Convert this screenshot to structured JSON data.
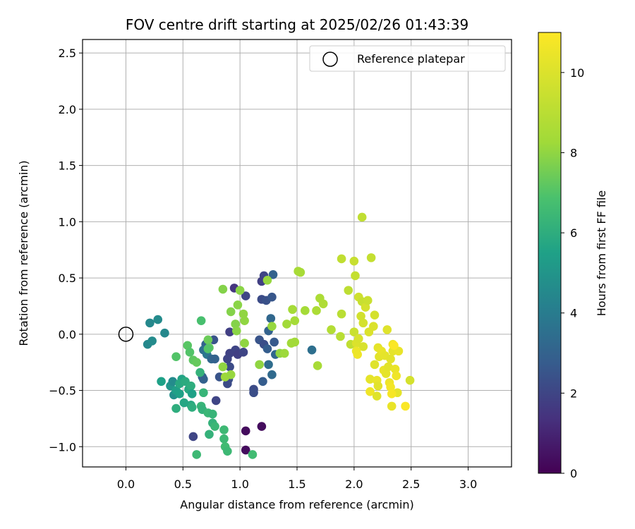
{
  "chart_data": {
    "type": "scatter",
    "title": "FOV centre drift starting at 2025/02/26 01:43:39",
    "xlabel": "Angular distance from reference (arcmin)",
    "ylabel": "Rotation from reference (arcmin)",
    "xlim": [
      -0.38,
      3.38
    ],
    "ylim": [
      -1.18,
      2.62
    ],
    "xticks": [
      "0.0",
      "0.5",
      "1.0",
      "1.5",
      "2.0",
      "2.5",
      "3.0"
    ],
    "xtick_values": [
      0,
      0.5,
      1,
      1.5,
      2,
      2.5,
      3
    ],
    "yticks": [
      "−1.0",
      "−0.5",
      "0.0",
      "0.5",
      "1.0",
      "1.5",
      "2.0",
      "2.5"
    ],
    "ytick_values": [
      -1,
      -0.5,
      0,
      0.5,
      1,
      1.5,
      2,
      2.5
    ],
    "grid": true,
    "legend": {
      "position": "top-right",
      "label": "Reference platepar"
    },
    "reference_point": {
      "x": 0,
      "y": 0
    },
    "colorbar": {
      "label": "Hours from first FF file",
      "range": [
        0,
        11
      ],
      "ticks": [
        "0",
        "2",
        "4",
        "6",
        "8",
        "10"
      ],
      "tick_values": [
        0,
        2,
        4,
        6,
        8,
        10
      ],
      "colormap": "viridis"
    },
    "points": [
      {
        "x": 1.05,
        "y": -0.86,
        "h": 0.3
      },
      {
        "x": 1.05,
        "y": -1.03,
        "h": 0.3
      },
      {
        "x": 1.19,
        "y": -0.82,
        "h": 0.3
      },
      {
        "x": 0.95,
        "y": 0.41,
        "h": 1.5
      },
      {
        "x": 1.05,
        "y": 0.34,
        "h": 2.0
      },
      {
        "x": 1.21,
        "y": 0.52,
        "h": 2.0
      },
      {
        "x": 1.19,
        "y": 0.47,
        "h": 1.8
      },
      {
        "x": 1.29,
        "y": 0.53,
        "h": 3.0
      },
      {
        "x": 1.19,
        "y": 0.31,
        "h": 2.2
      },
      {
        "x": 1.23,
        "y": 0.3,
        "h": 2.4
      },
      {
        "x": 1.28,
        "y": 0.33,
        "h": 2.6
      },
      {
        "x": 1.27,
        "y": 0.14,
        "h": 3.2
      },
      {
        "x": 1.25,
        "y": 0.03,
        "h": 3.0
      },
      {
        "x": 1.3,
        "y": -0.07,
        "h": 2.7
      },
      {
        "x": 1.17,
        "y": -0.05,
        "h": 2.5
      },
      {
        "x": 1.21,
        "y": -0.09,
        "h": 2.3
      },
      {
        "x": 1.24,
        "y": -0.13,
        "h": 2.8
      },
      {
        "x": 1.31,
        "y": -0.18,
        "h": 3.2
      },
      {
        "x": 1.25,
        "y": -0.27,
        "h": 3.4
      },
      {
        "x": 1.28,
        "y": -0.36,
        "h": 3.3
      },
      {
        "x": 1.2,
        "y": -0.42,
        "h": 2.8
      },
      {
        "x": 1.12,
        "y": -0.49,
        "h": 2.2
      },
      {
        "x": 1.12,
        "y": -0.52,
        "h": 2.3
      },
      {
        "x": 0.91,
        "y": 0.02,
        "h": 1.8
      },
      {
        "x": 0.96,
        "y": -0.14,
        "h": 2.0
      },
      {
        "x": 0.91,
        "y": -0.17,
        "h": 1.9
      },
      {
        "x": 0.98,
        "y": -0.18,
        "h": 1.8
      },
      {
        "x": 1.03,
        "y": -0.16,
        "h": 2.0
      },
      {
        "x": 0.89,
        "y": -0.22,
        "h": 2.0
      },
      {
        "x": 0.91,
        "y": -0.29,
        "h": 2.2
      },
      {
        "x": 0.9,
        "y": -0.4,
        "h": 2.4
      },
      {
        "x": 0.89,
        "y": -0.44,
        "h": 2.2
      },
      {
        "x": 0.82,
        "y": -0.38,
        "h": 2.5
      },
      {
        "x": 0.79,
        "y": -0.59,
        "h": 2.0
      },
      {
        "x": 0.77,
        "y": -0.05,
        "h": 2.5
      },
      {
        "x": 0.7,
        "y": -0.09,
        "h": 3.0
      },
      {
        "x": 0.68,
        "y": -0.14,
        "h": 3.5
      },
      {
        "x": 0.71,
        "y": -0.18,
        "h": 3.8
      },
      {
        "x": 0.75,
        "y": -0.22,
        "h": 3.2
      },
      {
        "x": 0.78,
        "y": -0.22,
        "h": 3.0
      },
      {
        "x": 0.67,
        "y": -0.38,
        "h": 2.8
      },
      {
        "x": 0.68,
        "y": -0.4,
        "h": 3.0
      },
      {
        "x": 0.59,
        "y": -0.91,
        "h": 2.0
      },
      {
        "x": 0.21,
        "y": 0.1,
        "h": 4.5
      },
      {
        "x": 0.28,
        "y": 0.13,
        "h": 4.6
      },
      {
        "x": 0.34,
        "y": 0.01,
        "h": 4.5
      },
      {
        "x": 0.19,
        "y": -0.09,
        "h": 4.5
      },
      {
        "x": 0.23,
        "y": -0.06,
        "h": 4.6
      },
      {
        "x": 0.39,
        "y": -0.46,
        "h": 5.0
      },
      {
        "x": 0.41,
        "y": -0.42,
        "h": 4.6
      },
      {
        "x": 0.42,
        "y": -0.54,
        "h": 4.8
      },
      {
        "x": 0.44,
        "y": -0.5,
        "h": 5.4
      },
      {
        "x": 0.47,
        "y": -0.53,
        "h": 5.5
      },
      {
        "x": 0.49,
        "y": -0.4,
        "h": 5.6
      },
      {
        "x": 0.47,
        "y": -0.44,
        "h": 5.8
      },
      {
        "x": 0.52,
        "y": -0.42,
        "h": 5.9
      },
      {
        "x": 0.55,
        "y": -0.49,
        "h": 5.8
      },
      {
        "x": 0.57,
        "y": -0.46,
        "h": 6.0
      },
      {
        "x": 0.58,
        "y": -0.53,
        "h": 5.5
      },
      {
        "x": 0.57,
        "y": -0.63,
        "h": 5.8
      },
      {
        "x": 0.58,
        "y": -0.65,
        "h": 6.0
      },
      {
        "x": 0.51,
        "y": -0.61,
        "h": 5.7
      },
      {
        "x": 0.44,
        "y": -0.66,
        "h": 6.0
      },
      {
        "x": 0.31,
        "y": -0.42,
        "h": 5.5
      },
      {
        "x": 0.65,
        "y": -0.34,
        "h": 6.2
      },
      {
        "x": 0.68,
        "y": -0.52,
        "h": 6.3
      },
      {
        "x": 0.66,
        "y": -0.64,
        "h": 6.3
      },
      {
        "x": 0.67,
        "y": -0.67,
        "h": 6.2
      },
      {
        "x": 0.72,
        "y": -0.7,
        "h": 6.4
      },
      {
        "x": 0.76,
        "y": -0.71,
        "h": 6.3
      },
      {
        "x": 0.76,
        "y": -0.79,
        "h": 6.2
      },
      {
        "x": 0.78,
        "y": -0.82,
        "h": 6.4
      },
      {
        "x": 0.73,
        "y": -0.89,
        "h": 6.2
      },
      {
        "x": 0.86,
        "y": -0.85,
        "h": 6.5
      },
      {
        "x": 0.86,
        "y": -0.93,
        "h": 6.5
      },
      {
        "x": 0.87,
        "y": -1.0,
        "h": 6.6
      },
      {
        "x": 0.89,
        "y": -1.04,
        "h": 6.5
      },
      {
        "x": 0.62,
        "y": -1.07,
        "h": 6.5
      },
      {
        "x": 1.11,
        "y": -1.07,
        "h": 6.6
      },
      {
        "x": 0.66,
        "y": 0.12,
        "h": 6.8
      },
      {
        "x": 0.44,
        "y": -0.2,
        "h": 7.0
      },
      {
        "x": 0.54,
        "y": -0.1,
        "h": 7.1
      },
      {
        "x": 0.56,
        "y": -0.16,
        "h": 7.0
      },
      {
        "x": 0.59,
        "y": -0.23,
        "h": 7.2
      },
      {
        "x": 0.62,
        "y": -0.25,
        "h": 7.3
      },
      {
        "x": 0.72,
        "y": -0.05,
        "h": 7.4
      },
      {
        "x": 0.73,
        "y": -0.12,
        "h": 7.2
      },
      {
        "x": 0.72,
        "y": -0.13,
        "h": 7.0
      },
      {
        "x": 0.85,
        "y": 0.4,
        "h": 7.8
      },
      {
        "x": 0.92,
        "y": 0.2,
        "h": 7.8
      },
      {
        "x": 0.98,
        "y": 0.26,
        "h": 7.9
      },
      {
        "x": 1.0,
        "y": 0.39,
        "h": 7.9
      },
      {
        "x": 0.96,
        "y": 0.09,
        "h": 7.8
      },
      {
        "x": 0.97,
        "y": 0.03,
        "h": 7.9
      },
      {
        "x": 1.03,
        "y": 0.18,
        "h": 8.0
      },
      {
        "x": 1.04,
        "y": 0.12,
        "h": 8.0
      },
      {
        "x": 1.04,
        "y": -0.08,
        "h": 8.0
      },
      {
        "x": 0.85,
        "y": -0.29,
        "h": 8.0
      },
      {
        "x": 0.87,
        "y": -0.38,
        "h": 8.2
      },
      {
        "x": 0.92,
        "y": -0.36,
        "h": 8.1
      },
      {
        "x": 1.17,
        "y": -0.27,
        "h": 8.0
      },
      {
        "x": 1.24,
        "y": 0.48,
        "h": 8.1
      },
      {
        "x": 1.28,
        "y": 0.07,
        "h": 8.1
      },
      {
        "x": 1.35,
        "y": -0.17,
        "h": 8.0
      },
      {
        "x": 1.39,
        "y": -0.17,
        "h": 8.2
      },
      {
        "x": 1.41,
        "y": 0.09,
        "h": 8.3
      },
      {
        "x": 1.46,
        "y": 0.22,
        "h": 8.4
      },
      {
        "x": 1.48,
        "y": 0.12,
        "h": 8.4
      },
      {
        "x": 1.45,
        "y": -0.08,
        "h": 8.3
      },
      {
        "x": 1.48,
        "y": -0.07,
        "h": 8.3
      },
      {
        "x": 1.51,
        "y": 0.56,
        "h": 8.5
      },
      {
        "x": 1.53,
        "y": 0.55,
        "h": 8.5
      },
      {
        "x": 1.57,
        "y": 0.21,
        "h": 8.4
      },
      {
        "x": 1.63,
        "y": -0.14,
        "h": 3.5
      },
      {
        "x": 1.67,
        "y": 0.21,
        "h": 8.6
      },
      {
        "x": 1.7,
        "y": 0.32,
        "h": 8.6
      },
      {
        "x": 1.73,
        "y": 0.27,
        "h": 8.7
      },
      {
        "x": 1.68,
        "y": -0.28,
        "h": 8.5
      },
      {
        "x": 1.8,
        "y": 0.04,
        "h": 8.8
      },
      {
        "x": 1.88,
        "y": -0.02,
        "h": 9.0
      },
      {
        "x": 1.89,
        "y": 0.67,
        "h": 9.2
      },
      {
        "x": 1.89,
        "y": 0.18,
        "h": 9.0
      },
      {
        "x": 1.95,
        "y": 0.39,
        "h": 9.1
      },
      {
        "x": 1.97,
        "y": -0.09,
        "h": 9.2
      },
      {
        "x": 2.0,
        "y": 0.65,
        "h": 9.4
      },
      {
        "x": 2.01,
        "y": 0.52,
        "h": 9.3
      },
      {
        "x": 2.0,
        "y": 0.02,
        "h": 9.5
      },
      {
        "x": 2.04,
        "y": 0.33,
        "h": 9.6
      },
      {
        "x": 2.07,
        "y": 0.29,
        "h": 9.4
      },
      {
        "x": 2.07,
        "y": 1.04,
        "h": 9.2
      },
      {
        "x": 2.1,
        "y": 0.24,
        "h": 9.8
      },
      {
        "x": 2.12,
        "y": 0.3,
        "h": 9.5
      },
      {
        "x": 2.15,
        "y": 0.68,
        "h": 9.3
      },
      {
        "x": 2.08,
        "y": 0.1,
        "h": 9.8
      },
      {
        "x": 2.06,
        "y": 0.16,
        "h": 9.7
      },
      {
        "x": 2.02,
        "y": -0.08,
        "h": 10.0
      },
      {
        "x": 2.04,
        "y": -0.04,
        "h": 9.9
      },
      {
        "x": 2.08,
        "y": -0.11,
        "h": 9.9
      },
      {
        "x": 2.13,
        "y": 0.02,
        "h": 10.0
      },
      {
        "x": 2.17,
        "y": 0.07,
        "h": 10.0
      },
      {
        "x": 2.18,
        "y": 0.17,
        "h": 9.8
      },
      {
        "x": 2.03,
        "y": -0.18,
        "h": 10.6
      },
      {
        "x": 2.02,
        "y": -0.15,
        "h": 10.5
      },
      {
        "x": 2.18,
        "y": -0.27,
        "h": 10.1
      },
      {
        "x": 2.21,
        "y": -0.12,
        "h": 10.3
      },
      {
        "x": 2.22,
        "y": -0.2,
        "h": 10.2
      },
      {
        "x": 2.24,
        "y": -0.15,
        "h": 10.4
      },
      {
        "x": 2.27,
        "y": -0.19,
        "h": 10.3
      },
      {
        "x": 2.29,
        "y": 0.04,
        "h": 10.1
      },
      {
        "x": 2.14,
        "y": -0.4,
        "h": 10.3
      },
      {
        "x": 2.14,
        "y": -0.51,
        "h": 10.6
      },
      {
        "x": 2.2,
        "y": -0.41,
        "h": 10.4
      },
      {
        "x": 2.21,
        "y": -0.46,
        "h": 10.2
      },
      {
        "x": 2.2,
        "y": -0.55,
        "h": 10.1
      },
      {
        "x": 2.26,
        "y": -0.32,
        "h": 10.4
      },
      {
        "x": 2.28,
        "y": -0.35,
        "h": 10.3
      },
      {
        "x": 2.3,
        "y": -0.29,
        "h": 10.2
      },
      {
        "x": 2.31,
        "y": -0.43,
        "h": 10.6
      },
      {
        "x": 2.32,
        "y": -0.22,
        "h": 10.2
      },
      {
        "x": 2.34,
        "y": -0.15,
        "h": 10.3
      },
      {
        "x": 2.34,
        "y": -0.09,
        "h": 10.6
      },
      {
        "x": 2.36,
        "y": -0.31,
        "h": 10.4
      },
      {
        "x": 2.37,
        "y": -0.37,
        "h": 10.6
      },
      {
        "x": 2.39,
        "y": -0.15,
        "h": 10.4
      },
      {
        "x": 2.38,
        "y": -0.52,
        "h": 10.3
      },
      {
        "x": 2.32,
        "y": -0.47,
        "h": 10.7
      },
      {
        "x": 2.33,
        "y": -0.53,
        "h": 10.8
      },
      {
        "x": 2.33,
        "y": -0.64,
        "h": 10.4
      },
      {
        "x": 2.45,
        "y": -0.64,
        "h": 10.9
      },
      {
        "x": 2.49,
        "y": -0.41,
        "h": 9.8
      },
      {
        "x": 2.35,
        "y": -0.1,
        "h": 10.9
      }
    ]
  }
}
